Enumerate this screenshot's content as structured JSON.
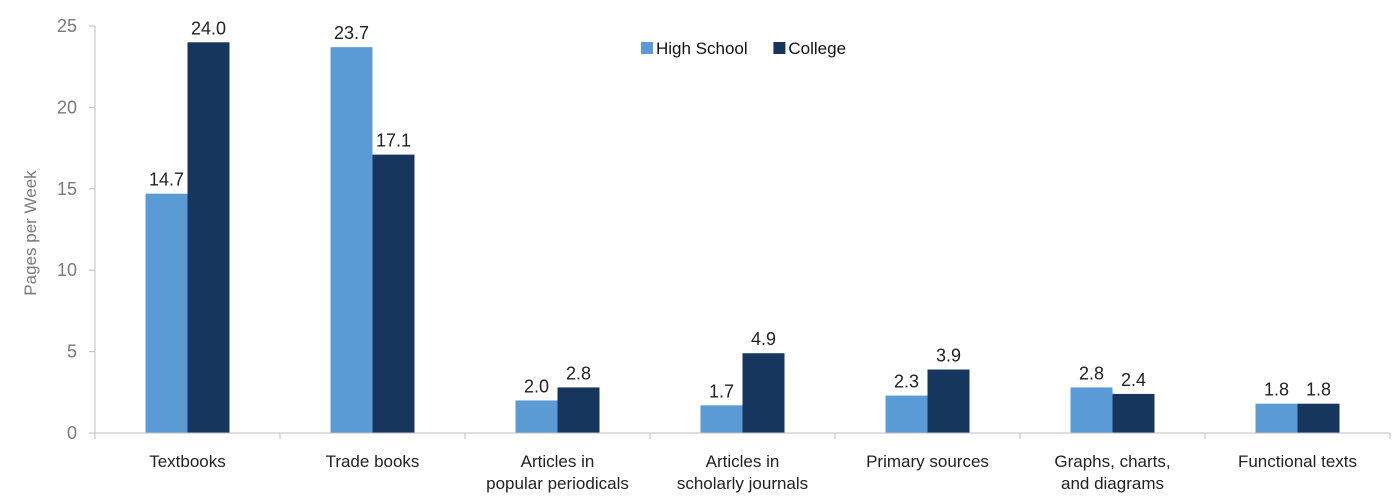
{
  "chart_data": {
    "type": "bar",
    "title": "",
    "xlabel": "",
    "ylabel": "Pages per Week",
    "ylim": [
      0,
      25
    ],
    "yticks": [
      0,
      5,
      10,
      15,
      20,
      25
    ],
    "grid": false,
    "legend_position": "top",
    "categories": [
      [
        "Textbooks"
      ],
      [
        "Trade books"
      ],
      [
        "Articles in",
        "popular periodicals"
      ],
      [
        "Articles in",
        "scholarly journals"
      ],
      [
        "Primary sources"
      ],
      [
        "Graphs, charts,",
        "and diagrams"
      ],
      [
        "Functional texts"
      ]
    ],
    "series": [
      {
        "name": "High School",
        "color": "#5b9bd5",
        "values": [
          14.7,
          23.7,
          2.0,
          1.7,
          2.3,
          2.8,
          1.8
        ],
        "labels": [
          "14.7",
          "23.7",
          "2.0",
          "1.7",
          "2.3",
          "2.8",
          "1.8"
        ]
      },
      {
        "name": "College",
        "color": "#17365d",
        "values": [
          24.0,
          17.1,
          2.8,
          4.9,
          3.9,
          2.4,
          1.8
        ],
        "labels": [
          "24.0",
          "17.1",
          "2.8",
          "4.9",
          "3.9",
          "2.4",
          "1.8"
        ]
      }
    ]
  }
}
